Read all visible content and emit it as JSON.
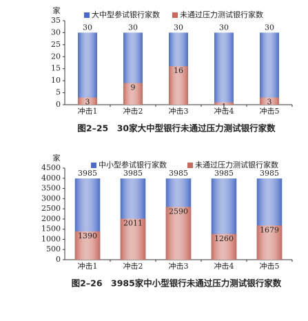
{
  "chart_data": [
    {
      "type": "bar",
      "title": "图2–25　30家大中型银行未通过压力测试银行家数",
      "ylabel": "家",
      "categories": [
        "冲击1",
        "冲击2",
        "冲击3",
        "冲击4",
        "冲击5"
      ],
      "series": [
        {
          "name": "大中型参试银行家数",
          "color": "#4a6cc8",
          "values": [
            30,
            30,
            30,
            30,
            30
          ]
        },
        {
          "name": "未通过压力测试银行家数",
          "color": "#c9695c",
          "values": [
            3,
            9,
            16,
            1,
            3
          ]
        }
      ],
      "ylim": [
        0,
        35
      ],
      "yticks": [
        0,
        5,
        10,
        15,
        20,
        25,
        30,
        35
      ]
    },
    {
      "type": "bar",
      "title": "图2–26　3985家中小型银行未通过压力测试银行家数",
      "ylabel": "家",
      "categories": [
        "冲击1",
        "冲击2",
        "冲击3",
        "冲击4",
        "冲击5"
      ],
      "series": [
        {
          "name": "中小型参试银行家数",
          "color": "#4a6cc8",
          "values": [
            3985,
            3985,
            3985,
            3985,
            3985
          ]
        },
        {
          "name": "未通过压力测试银行家数",
          "color": "#c9695c",
          "values": [
            1390,
            2011,
            2590,
            1260,
            1679
          ]
        }
      ],
      "ylim": [
        0,
        4500
      ],
      "yticks": [
        0,
        500,
        1000,
        1500,
        2000,
        2500,
        3000,
        3500,
        4000,
        4500
      ]
    }
  ]
}
